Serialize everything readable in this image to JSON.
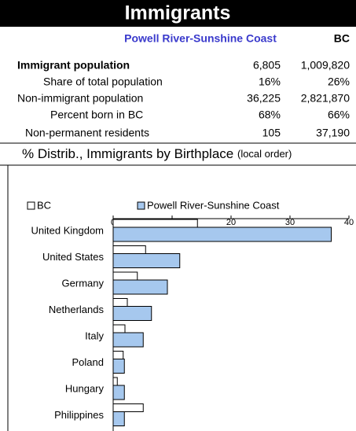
{
  "header": {
    "title": "Immigrants"
  },
  "table": {
    "columns": [
      "Powell River-Sunshine Coast",
      "BC"
    ],
    "rows": [
      [
        "Immigrant population",
        "6,805",
        "1,009,820"
      ],
      [
        "Share of total population",
        "16%",
        "26%"
      ],
      [
        "Non-immigrant population",
        "36,225",
        "2,821,870"
      ],
      [
        "Percent born in BC",
        "68%",
        "66%"
      ],
      [
        "Non-permanent residents",
        "105",
        "37,190"
      ]
    ]
  },
  "section": {
    "title": "% Distrib., Immigrants by Birthplace",
    "note": "(local order)"
  },
  "chart_data": {
    "type": "bar",
    "orientation": "horizontal",
    "categories": [
      "United Kingdom",
      "United States",
      "Germany",
      "Netherlands",
      "Italy",
      "Poland",
      "Hungary",
      "Philippines"
    ],
    "series": [
      {
        "name": "BC",
        "color": "#ffffff",
        "values": [
          14.3,
          5.5,
          4.1,
          2.4,
          2.0,
          1.7,
          0.7,
          5.1
        ]
      },
      {
        "name": "Powell River-Sunshine Coast",
        "color": "#a6c8ee",
        "values": [
          37.0,
          11.3,
          9.2,
          6.5,
          5.1,
          1.9,
          1.9,
          1.9
        ]
      }
    ],
    "xlim": [
      0,
      40
    ],
    "xticks": [
      0,
      10,
      20,
      30,
      40
    ],
    "legend": "top"
  }
}
